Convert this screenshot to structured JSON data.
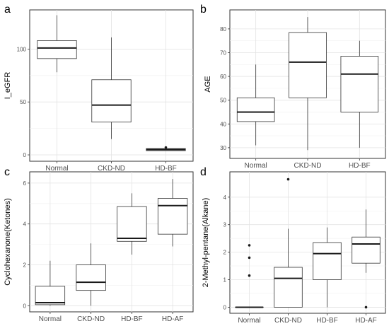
{
  "chart_data": [
    {
      "panel": "a",
      "type": "box",
      "categories": [
        "Normal",
        "CKD-ND",
        "HD-BF"
      ],
      "ylabel": "I_eGFR",
      "ylim": [
        -6,
        137
      ],
      "yticks": [
        0,
        50,
        100
      ],
      "boxes": [
        {
          "min": 78,
          "q1": 91,
          "median": 101,
          "q3": 108,
          "max": 132,
          "outliers": []
        },
        {
          "min": 15,
          "q1": 31,
          "median": 47,
          "q3": 71,
          "max": 111,
          "outliers": []
        },
        {
          "min": 4,
          "q1": 4,
          "median": 5,
          "q3": 6,
          "max": 6,
          "outliers": [
            7
          ]
        }
      ],
      "grid": true
    },
    {
      "panel": "b",
      "type": "box",
      "categories": [
        "Normal",
        "CKD-ND",
        "HD-BF"
      ],
      "ylabel": "AGE",
      "ylim": [
        25.5,
        88
      ],
      "yticks": [
        30,
        40,
        50,
        60,
        70,
        80
      ],
      "boxes": [
        {
          "min": 31,
          "q1": 41,
          "median": 45,
          "q3": 51,
          "max": 65,
          "outliers": []
        },
        {
          "min": 29,
          "q1": 51,
          "median": 66,
          "q3": 78.5,
          "max": 85,
          "outliers": []
        },
        {
          "min": 30,
          "q1": 45,
          "median": 61,
          "q3": 68.5,
          "max": 75,
          "outliers": []
        }
      ],
      "grid": true
    },
    {
      "panel": "c",
      "type": "box",
      "categories": [
        "Normal",
        "CKD-ND",
        "HD-BF",
        "HD-AF"
      ],
      "ylabel": "Cyclohexanone(Ketones)",
      "ylim": [
        -0.3,
        6.55
      ],
      "yticks": [
        0,
        2,
        4,
        6
      ],
      "boxes": [
        {
          "min": 0,
          "q1": 0.05,
          "median": 0.15,
          "q3": 0.95,
          "max": 2.2,
          "outliers": []
        },
        {
          "min": 0,
          "q1": 0.75,
          "median": 1.15,
          "q3": 2.0,
          "max": 3.05,
          "outliers": []
        },
        {
          "min": 2.5,
          "q1": 3.15,
          "median": 3.3,
          "q3": 4.85,
          "max": 5.5,
          "outliers": []
        },
        {
          "min": 2.9,
          "q1": 3.5,
          "median": 4.9,
          "q3": 5.25,
          "max": 6.2,
          "outliers": []
        }
      ],
      "grid": true
    },
    {
      "panel": "d",
      "type": "box",
      "categories": [
        "Normal",
        "CKD-ND",
        "HD-BF",
        "HD-AF"
      ],
      "ylabel": "2-Methyl-pentane(Alkane)",
      "ylim": [
        -0.22,
        4.92
      ],
      "yticks": [
        0,
        1,
        2,
        3,
        4
      ],
      "boxes": [
        {
          "min": 0,
          "q1": 0,
          "median": 0,
          "q3": 0,
          "max": 0,
          "outliers": [
            1.15,
            1.8,
            2.25
          ]
        },
        {
          "min": 0,
          "q1": 0,
          "median": 1.05,
          "q3": 1.45,
          "max": 2.85,
          "outliers": [
            4.65
          ]
        },
        {
          "min": 0,
          "q1": 1.0,
          "median": 1.95,
          "q3": 2.35,
          "max": 2.9,
          "outliers": []
        },
        {
          "min": 1.25,
          "q1": 1.6,
          "median": 2.3,
          "q3": 2.55,
          "max": 3.55,
          "outliers": [
            0
          ]
        }
      ],
      "grid": true
    }
  ]
}
